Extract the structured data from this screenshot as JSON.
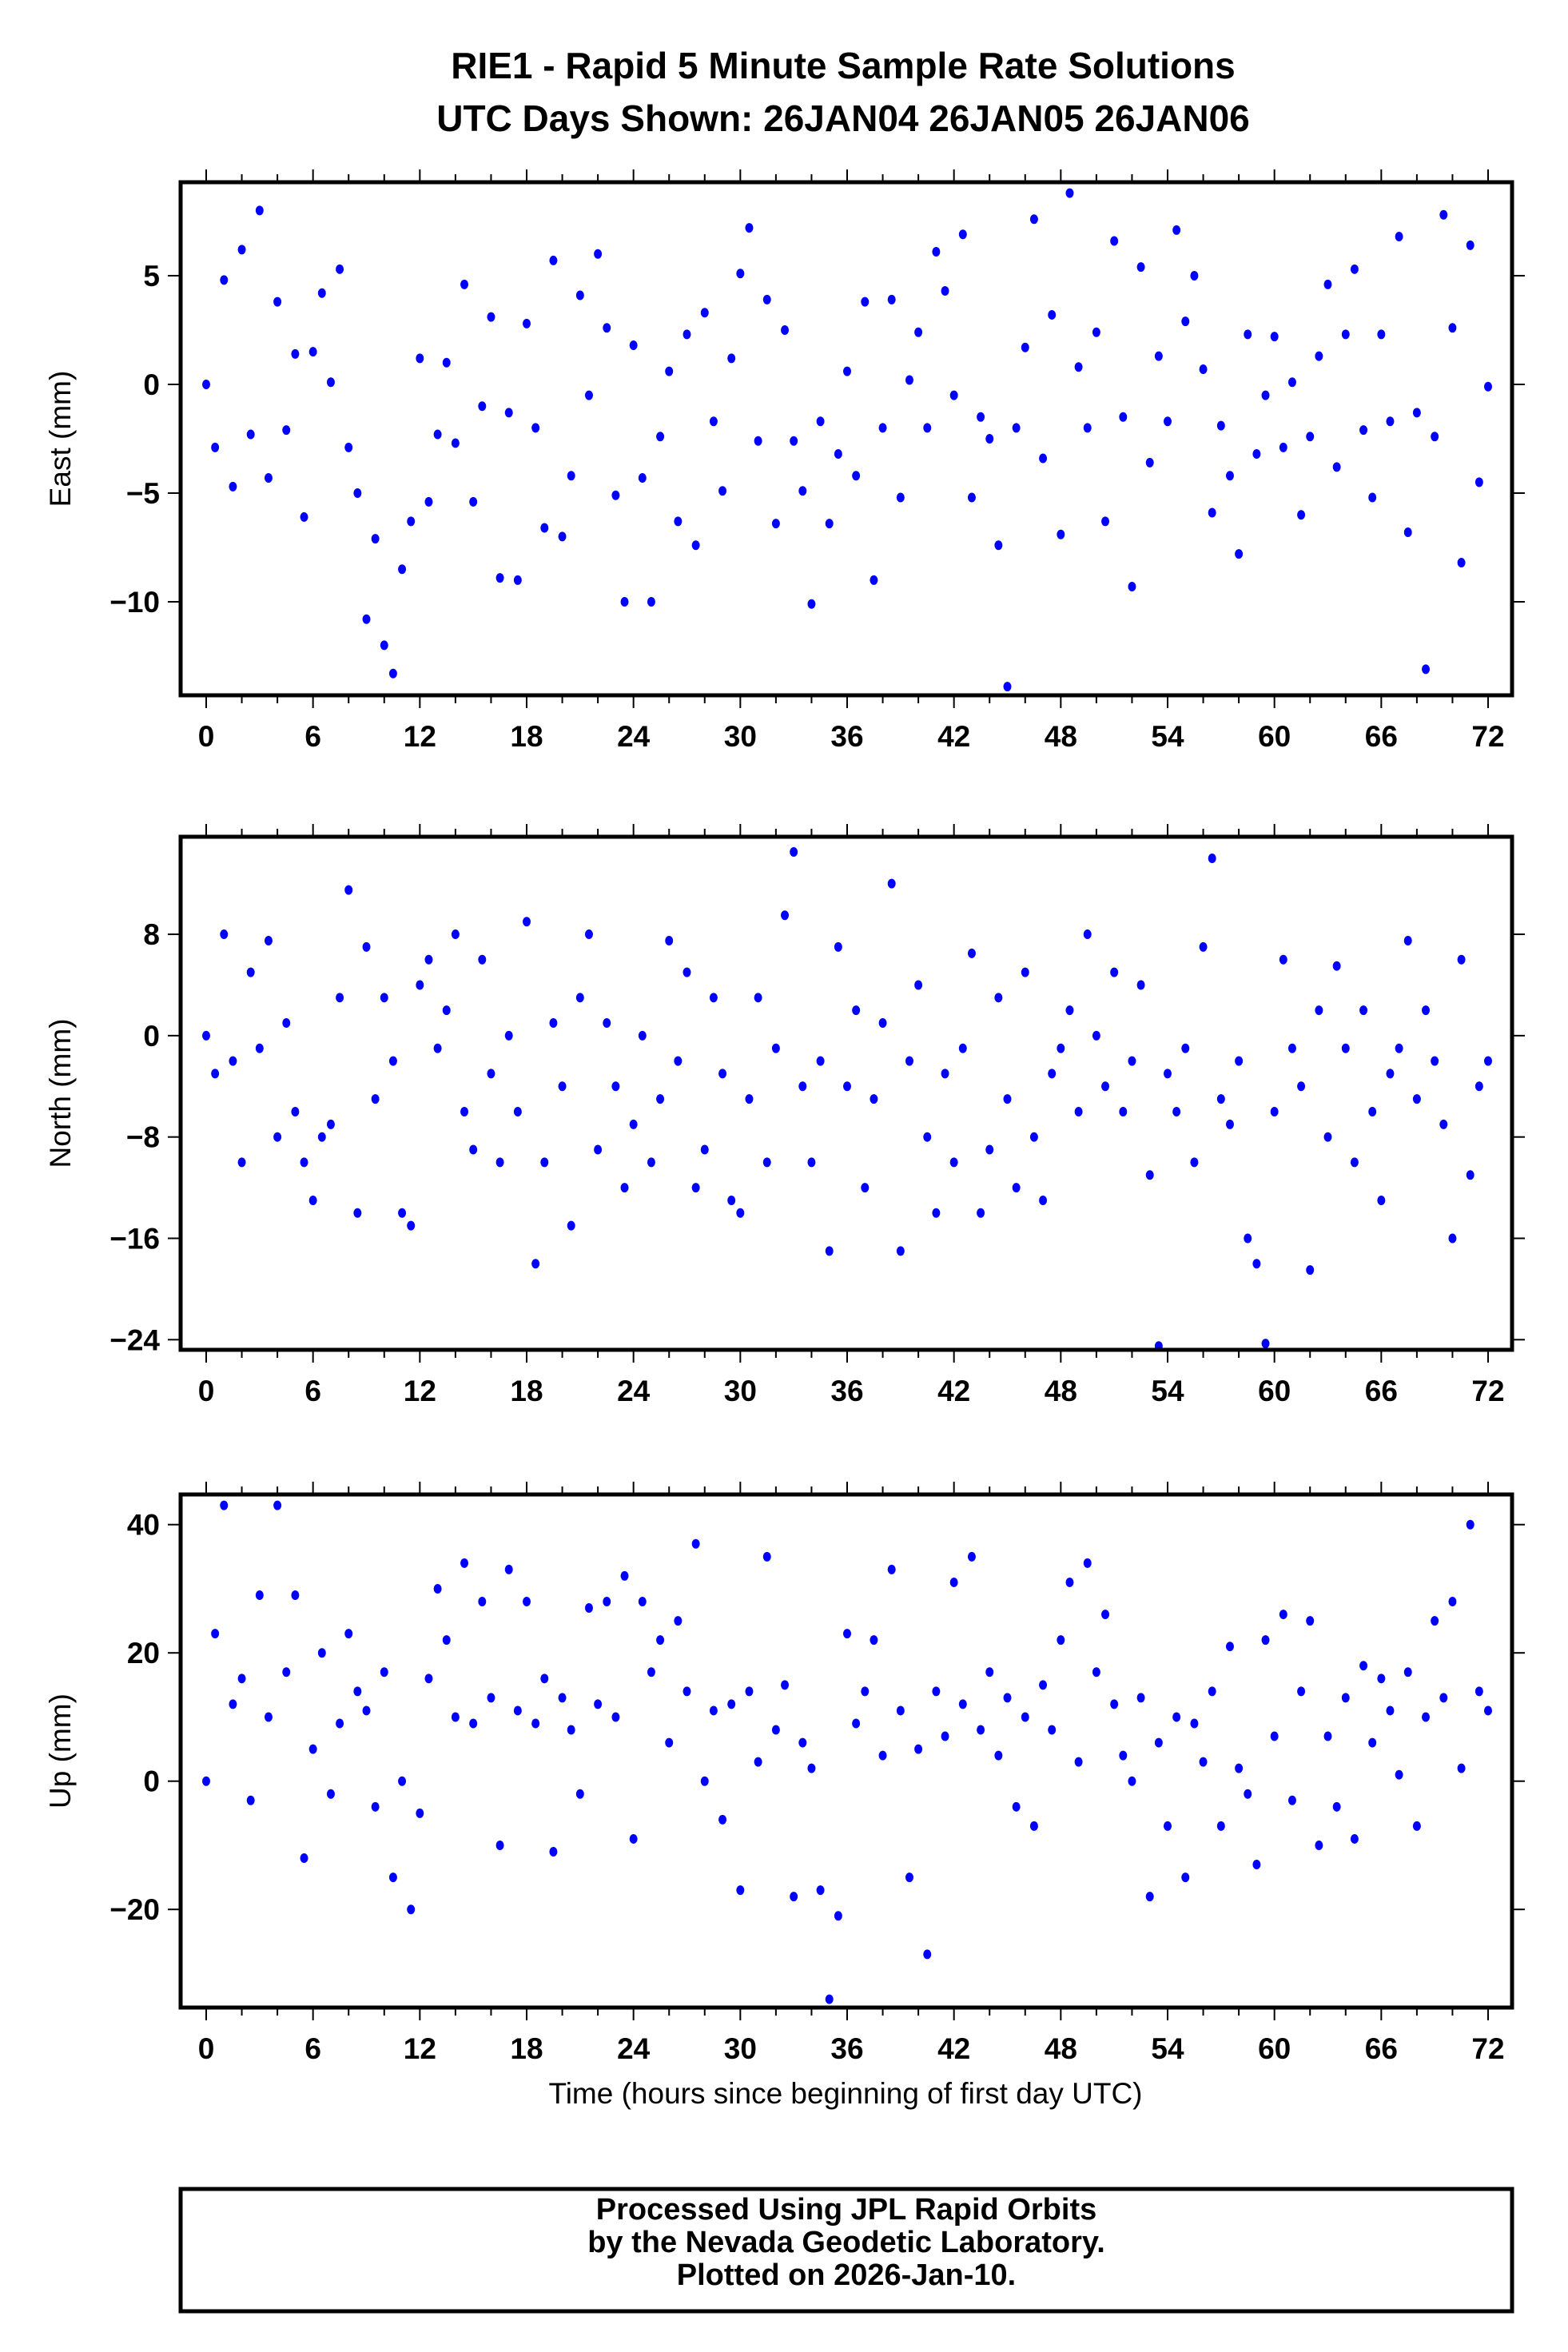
{
  "title_line1": "RIE1 - Rapid 5 Minute Sample Rate Solutions",
  "title_line2": "UTC Days Shown:  26JAN04 26JAN05 26JAN06",
  "xlabel": "Time (hours since beginning of first day UTC)",
  "footer": [
    "Processed Using JPL Rapid Orbits",
    "by the Nevada Geodetic Laboratory.",
    "Plotted on 2026-Jan-10."
  ],
  "colors": {
    "points": "#0000ff",
    "axes": "#000000"
  },
  "chart_data": [
    {
      "type": "scatter",
      "name": "east",
      "ylabel": "East (mm)",
      "xlim": [
        -1,
        73.5
      ],
      "ylim": [
        -14.3,
        9.3
      ],
      "xticks": [
        0,
        6,
        12,
        18,
        24,
        30,
        36,
        42,
        48,
        54,
        60,
        66,
        72
      ],
      "yticks": [
        5,
        0,
        -5,
        -10
      ],
      "ytick_labels": [
        "5",
        "0",
        "−5",
        "−10"
      ],
      "x_step": 0.5,
      "y": [
        0,
        -2.9,
        4.8,
        -4.7,
        6.2,
        -2.3,
        8.0,
        -4.3,
        3.8,
        -2.1,
        1.4,
        -6.1,
        1.5,
        4.2,
        0.1,
        5.3,
        -2.9,
        -5.0,
        -10.8,
        -7.1,
        -12.0,
        -13.3,
        -8.5,
        -6.3,
        1.2,
        -5.4,
        -2.3,
        1.0,
        -2.7,
        4.6,
        -5.4,
        -1.0,
        3.1,
        -8.9,
        -1.3,
        -9.0,
        2.8,
        -2.0,
        -6.6,
        5.7,
        -7.0,
        -4.2,
        4.1,
        -0.5,
        6.0,
        2.6,
        -5.1,
        -10.0,
        1.8,
        -4.3,
        -10.0,
        -2.4,
        0.6,
        -6.3,
        2.3,
        -7.4,
        3.3,
        -1.7,
        -4.9,
        1.2,
        5.1,
        7.2,
        -2.6,
        3.9,
        -6.4,
        2.5,
        -2.6,
        -4.9,
        -10.1,
        -1.7,
        -6.4,
        -3.2,
        0.6,
        -4.2,
        3.8,
        -9.0,
        -2.0,
        3.9,
        -5.2,
        0.2,
        2.4,
        -2.0,
        6.1,
        4.3,
        -0.5,
        6.9,
        -5.2,
        -1.5,
        -2.5,
        -7.4,
        -13.9,
        -2.0,
        1.7,
        7.6,
        -3.4,
        3.2,
        -6.9,
        8.8,
        0.8,
        -2.0,
        2.4,
        -6.3,
        6.6,
        -1.5,
        -9.3,
        5.4,
        -3.6,
        1.3,
        -1.7,
        7.1,
        2.9,
        5.0,
        0.7,
        -5.9,
        -1.9,
        -4.2,
        -7.8,
        2.3,
        -3.2,
        -0.5,
        2.2,
        -2.9,
        0.1,
        -6.0,
        -2.4,
        1.3,
        4.6,
        -3.8,
        2.3,
        5.3,
        -2.1,
        -5.2,
        2.3,
        -1.7,
        6.8,
        -6.8,
        -1.3,
        -13.1,
        -2.4,
        7.8,
        2.6,
        -8.2,
        6.4,
        -4.5,
        -0.1
      ]
    },
    {
      "type": "scatter",
      "name": "north",
      "ylabel": "North (mm)",
      "xlim": [
        -1,
        73.5
      ],
      "ylim": [
        -24.8,
        15.7
      ],
      "xticks": [
        0,
        6,
        12,
        18,
        24,
        30,
        36,
        42,
        48,
        54,
        60,
        66,
        72
      ],
      "yticks": [
        8,
        0,
        -8,
        -16,
        -24
      ],
      "ytick_labels": [
        "8",
        "0",
        "−8",
        "−16",
        "−24"
      ],
      "x_step": 0.5,
      "y": [
        0,
        -3,
        8,
        -2,
        -10,
        5,
        -1,
        7.5,
        -8,
        1,
        -6,
        -10,
        -13,
        -8,
        -7,
        3,
        11.5,
        -14,
        7,
        -5,
        3,
        -2,
        -14,
        -15,
        4,
        6,
        -1,
        2,
        8,
        -6,
        -9,
        6,
        -3,
        -10,
        0,
        -6,
        9,
        -18,
        -10,
        1,
        -4,
        -15,
        3,
        8,
        -9,
        1,
        -4,
        -12,
        -7,
        0,
        -10,
        -5,
        7.5,
        -2,
        5,
        -12,
        -9,
        3,
        -3,
        -13,
        -14,
        -5,
        3,
        -10,
        -1,
        9.5,
        14.5,
        -4,
        -10,
        -2,
        -17,
        7,
        -4,
        2,
        -12,
        -5,
        1,
        12,
        -17,
        -2,
        4,
        -8,
        -14,
        -3,
        -10,
        -1,
        6.5,
        -14,
        -9,
        3,
        -5,
        -12,
        5,
        -8,
        -13,
        -3,
        -1,
        2,
        -6,
        8,
        0,
        -4,
        5,
        -6,
        -2,
        4,
        -11,
        -24.5,
        -3,
        -6,
        -1,
        -10,
        7,
        14,
        -5,
        -7,
        -2,
        -16,
        -18,
        -24.3,
        -6,
        6,
        -1,
        -4,
        -18.5,
        2,
        -8,
        5.5,
        -1,
        -10,
        2,
        -6,
        -13,
        -3,
        -1,
        7.5,
        -5,
        2,
        -2,
        -7,
        -16,
        6,
        -11,
        -4,
        -2
      ]
    },
    {
      "type": "scatter",
      "name": "up",
      "ylabel": "Up (mm)",
      "xlim": [
        -1,
        73.5
      ],
      "ylim": [
        -35.3,
        44.7
      ],
      "xticks": [
        0,
        6,
        12,
        18,
        24,
        30,
        36,
        42,
        48,
        54,
        60,
        66,
        72
      ],
      "yticks": [
        40,
        20,
        0,
        -20
      ],
      "ytick_labels": [
        "40",
        "20",
        "0",
        "−20"
      ],
      "x_step": 0.5,
      "y": [
        0,
        23,
        43,
        12,
        16,
        -3,
        29,
        10,
        43,
        17,
        29,
        -12,
        5,
        20,
        -2,
        9,
        23,
        14,
        11,
        -4,
        17,
        -15,
        0,
        -20,
        -5,
        16,
        30,
        22,
        10,
        34,
        9,
        28,
        13,
        -10,
        33,
        11,
        28,
        9,
        16,
        -11,
        13,
        8,
        -2,
        27,
        12,
        28,
        10,
        32,
        -9,
        28,
        17,
        22,
        6,
        25,
        14,
        37,
        0,
        11,
        -6,
        12,
        -17,
        14,
        3,
        35,
        8,
        15,
        -18,
        6,
        2,
        -17,
        -34,
        -21,
        23,
        9,
        14,
        22,
        4,
        33,
        11,
        -15,
        5,
        -27,
        14,
        7,
        31,
        12,
        35,
        8,
        17,
        4,
        13,
        -4,
        10,
        -7,
        15,
        8,
        22,
        31,
        3,
        34,
        17,
        26,
        12,
        4,
        0,
        13,
        -18,
        6,
        -7,
        10,
        -15,
        9,
        3,
        14,
        -7,
        21,
        2,
        -2,
        -13,
        22,
        7,
        26,
        -3,
        14,
        25,
        -10,
        7,
        -4,
        13,
        -9,
        18,
        6,
        16,
        11,
        1,
        17,
        -7,
        10,
        25,
        13,
        28,
        2,
        40,
        14,
        11
      ]
    }
  ]
}
